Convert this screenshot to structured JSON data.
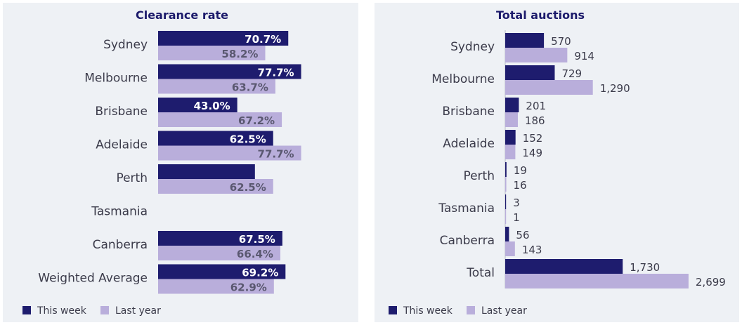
{
  "colors": {
    "this_week": "#1e1c6e",
    "last_year": "#b9aedb",
    "label_dark": "#ffffff",
    "label_light": "#5a5870",
    "axis": "#b8bcc6"
  },
  "legend": {
    "this_week": "This week",
    "last_year": "Last year",
    "placement": "bottom-left"
  },
  "chart_data": [
    {
      "type": "bar",
      "orientation": "horizontal",
      "title": "Clearance rate",
      "categories": [
        "Sydney",
        "Melbourne",
        "Brisbane",
        "Adelaide",
        "Perth",
        "Tasmania",
        "Canberra",
        "Weighted Average"
      ],
      "series": [
        {
          "name": "This week",
          "values": [
            70.7,
            77.7,
            43.0,
            62.5,
            52.6,
            null,
            67.5,
            69.2
          ],
          "labels": [
            "70.7%",
            "77.7%",
            "43.0%",
            "62.5%",
            "",
            "",
            "67.5%",
            "69.2%"
          ]
        },
        {
          "name": "Last year",
          "values": [
            58.2,
            63.7,
            67.2,
            77.7,
            62.5,
            null,
            66.4,
            62.9
          ],
          "labels": [
            "58.2%",
            "63.7%",
            "67.2%",
            "77.7%",
            "62.5%",
            "",
            "66.4%",
            "62.9%"
          ]
        }
      ],
      "xlim": [
        0,
        100
      ],
      "label_position": "inside-end",
      "grid": false
    },
    {
      "type": "bar",
      "orientation": "horizontal",
      "title": "Total auctions",
      "categories": [
        "Sydney",
        "Melbourne",
        "Brisbane",
        "Adelaide",
        "Perth",
        "Tasmania",
        "Canberra",
        "Total"
      ],
      "series": [
        {
          "name": "This week",
          "values": [
            570,
            729,
            201,
            152,
            19,
            3,
            56,
            1730
          ],
          "labels": [
            "570",
            "729",
            "201",
            "152",
            "19",
            "3",
            "56",
            "1,730"
          ]
        },
        {
          "name": "Last year",
          "values": [
            914,
            1290,
            186,
            149,
            16,
            1,
            143,
            2699
          ],
          "labels": [
            "914",
            "1,290",
            "186",
            "149",
            "16",
            "1",
            "143",
            "2,699"
          ]
        }
      ],
      "xlim": [
        0,
        3000
      ],
      "label_position": "outside-end",
      "grid": false
    }
  ]
}
